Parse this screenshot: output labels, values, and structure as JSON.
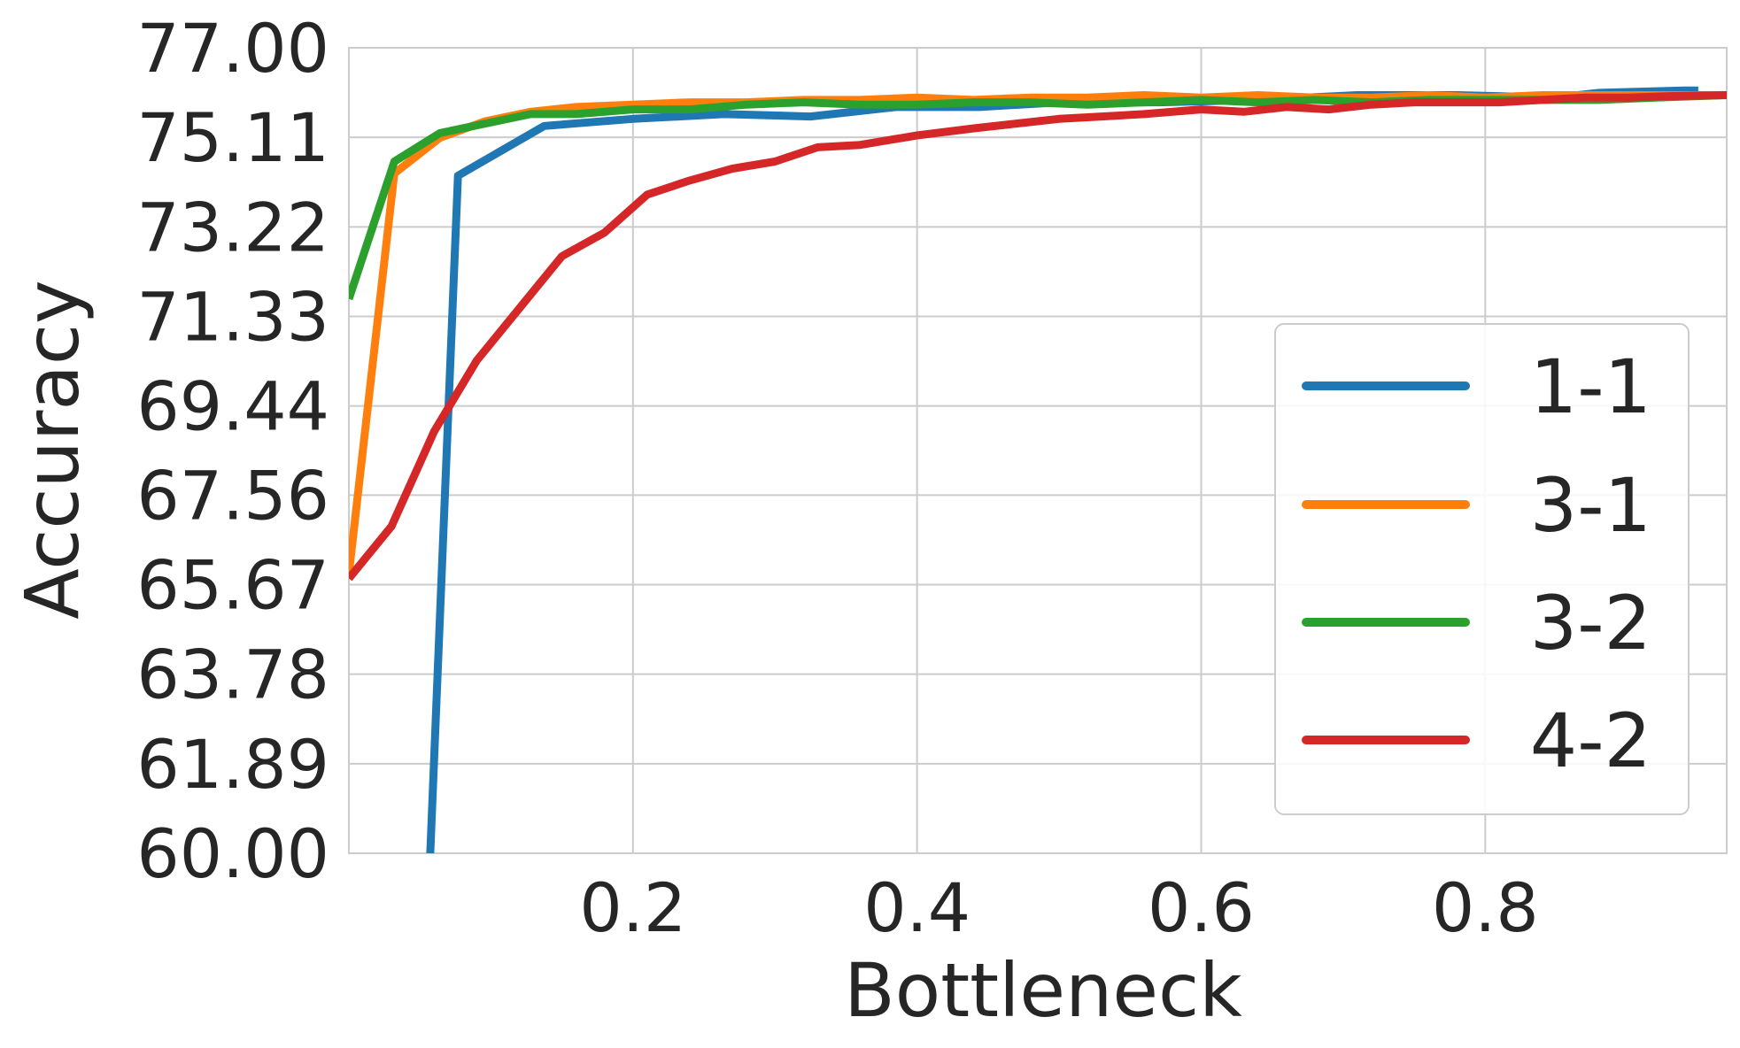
{
  "chart_data": {
    "type": "line",
    "title": "",
    "xlabel": "Bottleneck",
    "ylabel": "Accuracy",
    "xlim": [
      0.0,
      0.97
    ],
    "ylim": [
      60.0,
      77.0
    ],
    "x_ticks": [
      0.2,
      0.4,
      0.6,
      0.8
    ],
    "x_tick_labels": [
      "0.2",
      "0.4",
      "0.6",
      "0.8"
    ],
    "y_ticks": [
      60.0,
      61.89,
      63.78,
      65.67,
      67.56,
      69.44,
      71.33,
      73.22,
      75.11,
      77.0
    ],
    "y_tick_labels": [
      "60.00",
      "61.89",
      "63.78",
      "65.67",
      "67.56",
      "69.44",
      "71.33",
      "73.22",
      "75.11",
      "77.00"
    ],
    "grid": true,
    "legend_position": "lower-right",
    "colors": {
      "1-1": "#1f77b4",
      "3-1": "#ff7f0e",
      "3-2": "#2ca02c",
      "4-2": "#d62728"
    },
    "series": [
      {
        "name": "1-1",
        "x": [
          0.0573,
          0.0768,
          0.1375,
          0.2,
          0.264,
          0.325,
          0.385,
          0.444,
          0.5,
          0.57,
          0.64,
          0.71,
          0.78,
          0.85,
          0.88,
          0.94,
          0.95
        ],
        "y": [
          60.0,
          74.3,
          75.35,
          75.5,
          75.6,
          75.55,
          75.75,
          75.75,
          75.85,
          75.85,
          75.9,
          76.0,
          76.0,
          75.95,
          76.05,
          76.1,
          76.1
        ]
      },
      {
        "name": "3-1",
        "x": [
          0.0,
          0.032,
          0.064,
          0.096,
          0.128,
          0.16,
          0.2,
          0.24,
          0.28,
          0.32,
          0.36,
          0.4,
          0.44,
          0.48,
          0.52,
          0.56,
          0.6,
          0.64,
          0.68,
          0.72,
          0.76,
          0.8,
          0.84,
          0.88,
          0.92,
          0.97
        ],
        "y": [
          65.9,
          74.35,
          75.1,
          75.45,
          75.65,
          75.75,
          75.8,
          75.85,
          75.85,
          75.9,
          75.9,
          75.95,
          75.9,
          75.95,
          75.95,
          76.0,
          75.95,
          76.0,
          75.95,
          75.95,
          76.0,
          75.95,
          76.0,
          76.0,
          76.0,
          76.0
        ]
      },
      {
        "name": "3-2",
        "x": [
          0.0,
          0.032,
          0.064,
          0.096,
          0.128,
          0.16,
          0.2,
          0.24,
          0.28,
          0.32,
          0.36,
          0.4,
          0.44,
          0.48,
          0.52,
          0.56,
          0.6,
          0.64,
          0.68,
          0.72,
          0.76,
          0.8,
          0.84,
          0.88,
          0.92,
          0.97
        ],
        "y": [
          71.7,
          74.6,
          75.2,
          75.4,
          75.6,
          75.6,
          75.7,
          75.7,
          75.8,
          75.85,
          75.8,
          75.8,
          75.85,
          75.85,
          75.8,
          75.85,
          75.9,
          75.85,
          75.9,
          75.85,
          75.9,
          75.9,
          75.9,
          75.9,
          75.95,
          76.0
        ]
      },
      {
        "name": "4-2",
        "x": [
          0.0,
          0.03,
          0.06,
          0.09,
          0.12,
          0.15,
          0.18,
          0.21,
          0.24,
          0.27,
          0.3,
          0.33,
          0.36,
          0.4,
          0.44,
          0.47,
          0.5,
          0.53,
          0.56,
          0.6,
          0.63,
          0.66,
          0.69,
          0.72,
          0.75,
          0.78,
          0.81,
          0.84,
          0.87,
          0.9,
          0.93,
          0.97
        ],
        "y": [
          65.8,
          66.9,
          68.9,
          70.4,
          71.5,
          72.6,
          73.1,
          73.9,
          74.2,
          74.45,
          74.6,
          74.9,
          74.95,
          75.15,
          75.3,
          75.4,
          75.5,
          75.55,
          75.6,
          75.7,
          75.65,
          75.75,
          75.7,
          75.8,
          75.85,
          75.85,
          75.85,
          75.9,
          75.95,
          75.95,
          75.98,
          76.0
        ]
      }
    ]
  }
}
